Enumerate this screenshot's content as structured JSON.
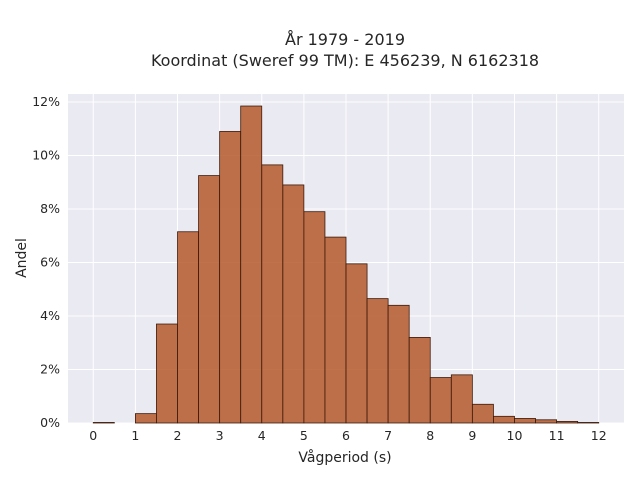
{
  "chart_data": {
    "type": "bar",
    "title_lines": [
      "År 1979 - 2019",
      "Koordinat (Sweref 99 TM): E 456239, N 6162318"
    ],
    "xlabel": "Vågperiod (s)",
    "ylabel": "Andel",
    "xlim": [
      -0.6,
      12.6
    ],
    "ylim": [
      0,
      12.3
    ],
    "x_ticks": [
      0,
      1,
      2,
      3,
      4,
      5,
      6,
      7,
      8,
      9,
      10,
      11,
      12
    ],
    "y_ticks": [
      0,
      2,
      4,
      6,
      8,
      10,
      12
    ],
    "y_tick_labels": [
      "0%",
      "2%",
      "4%",
      "6%",
      "8%",
      "10%",
      "12%"
    ],
    "grid": true,
    "bar_width": 0.5,
    "bar_color": "#b5592b",
    "bar_edge_color": "#3d1a0a",
    "plot_background": "#eaeaf2",
    "bins": [
      {
        "x": 0.25,
        "value": 0.02
      },
      {
        "x": 0.75,
        "value": 0.0
      },
      {
        "x": 1.25,
        "value": 0.35
      },
      {
        "x": 1.75,
        "value": 3.7
      },
      {
        "x": 2.25,
        "value": 7.15
      },
      {
        "x": 2.75,
        "value": 9.25
      },
      {
        "x": 3.25,
        "value": 10.9
      },
      {
        "x": 3.75,
        "value": 11.85
      },
      {
        "x": 4.25,
        "value": 9.65
      },
      {
        "x": 4.75,
        "value": 8.9
      },
      {
        "x": 5.25,
        "value": 7.9
      },
      {
        "x": 5.75,
        "value": 6.95
      },
      {
        "x": 6.25,
        "value": 5.95
      },
      {
        "x": 6.75,
        "value": 4.65
      },
      {
        "x": 7.25,
        "value": 4.4
      },
      {
        "x": 7.75,
        "value": 3.2
      },
      {
        "x": 8.25,
        "value": 1.7
      },
      {
        "x": 8.75,
        "value": 1.8
      },
      {
        "x": 9.25,
        "value": 0.7
      },
      {
        "x": 9.75,
        "value": 0.25
      },
      {
        "x": 10.25,
        "value": 0.17
      },
      {
        "x": 10.75,
        "value": 0.12
      },
      {
        "x": 11.25,
        "value": 0.06
      },
      {
        "x": 11.75,
        "value": 0.02
      }
    ]
  }
}
